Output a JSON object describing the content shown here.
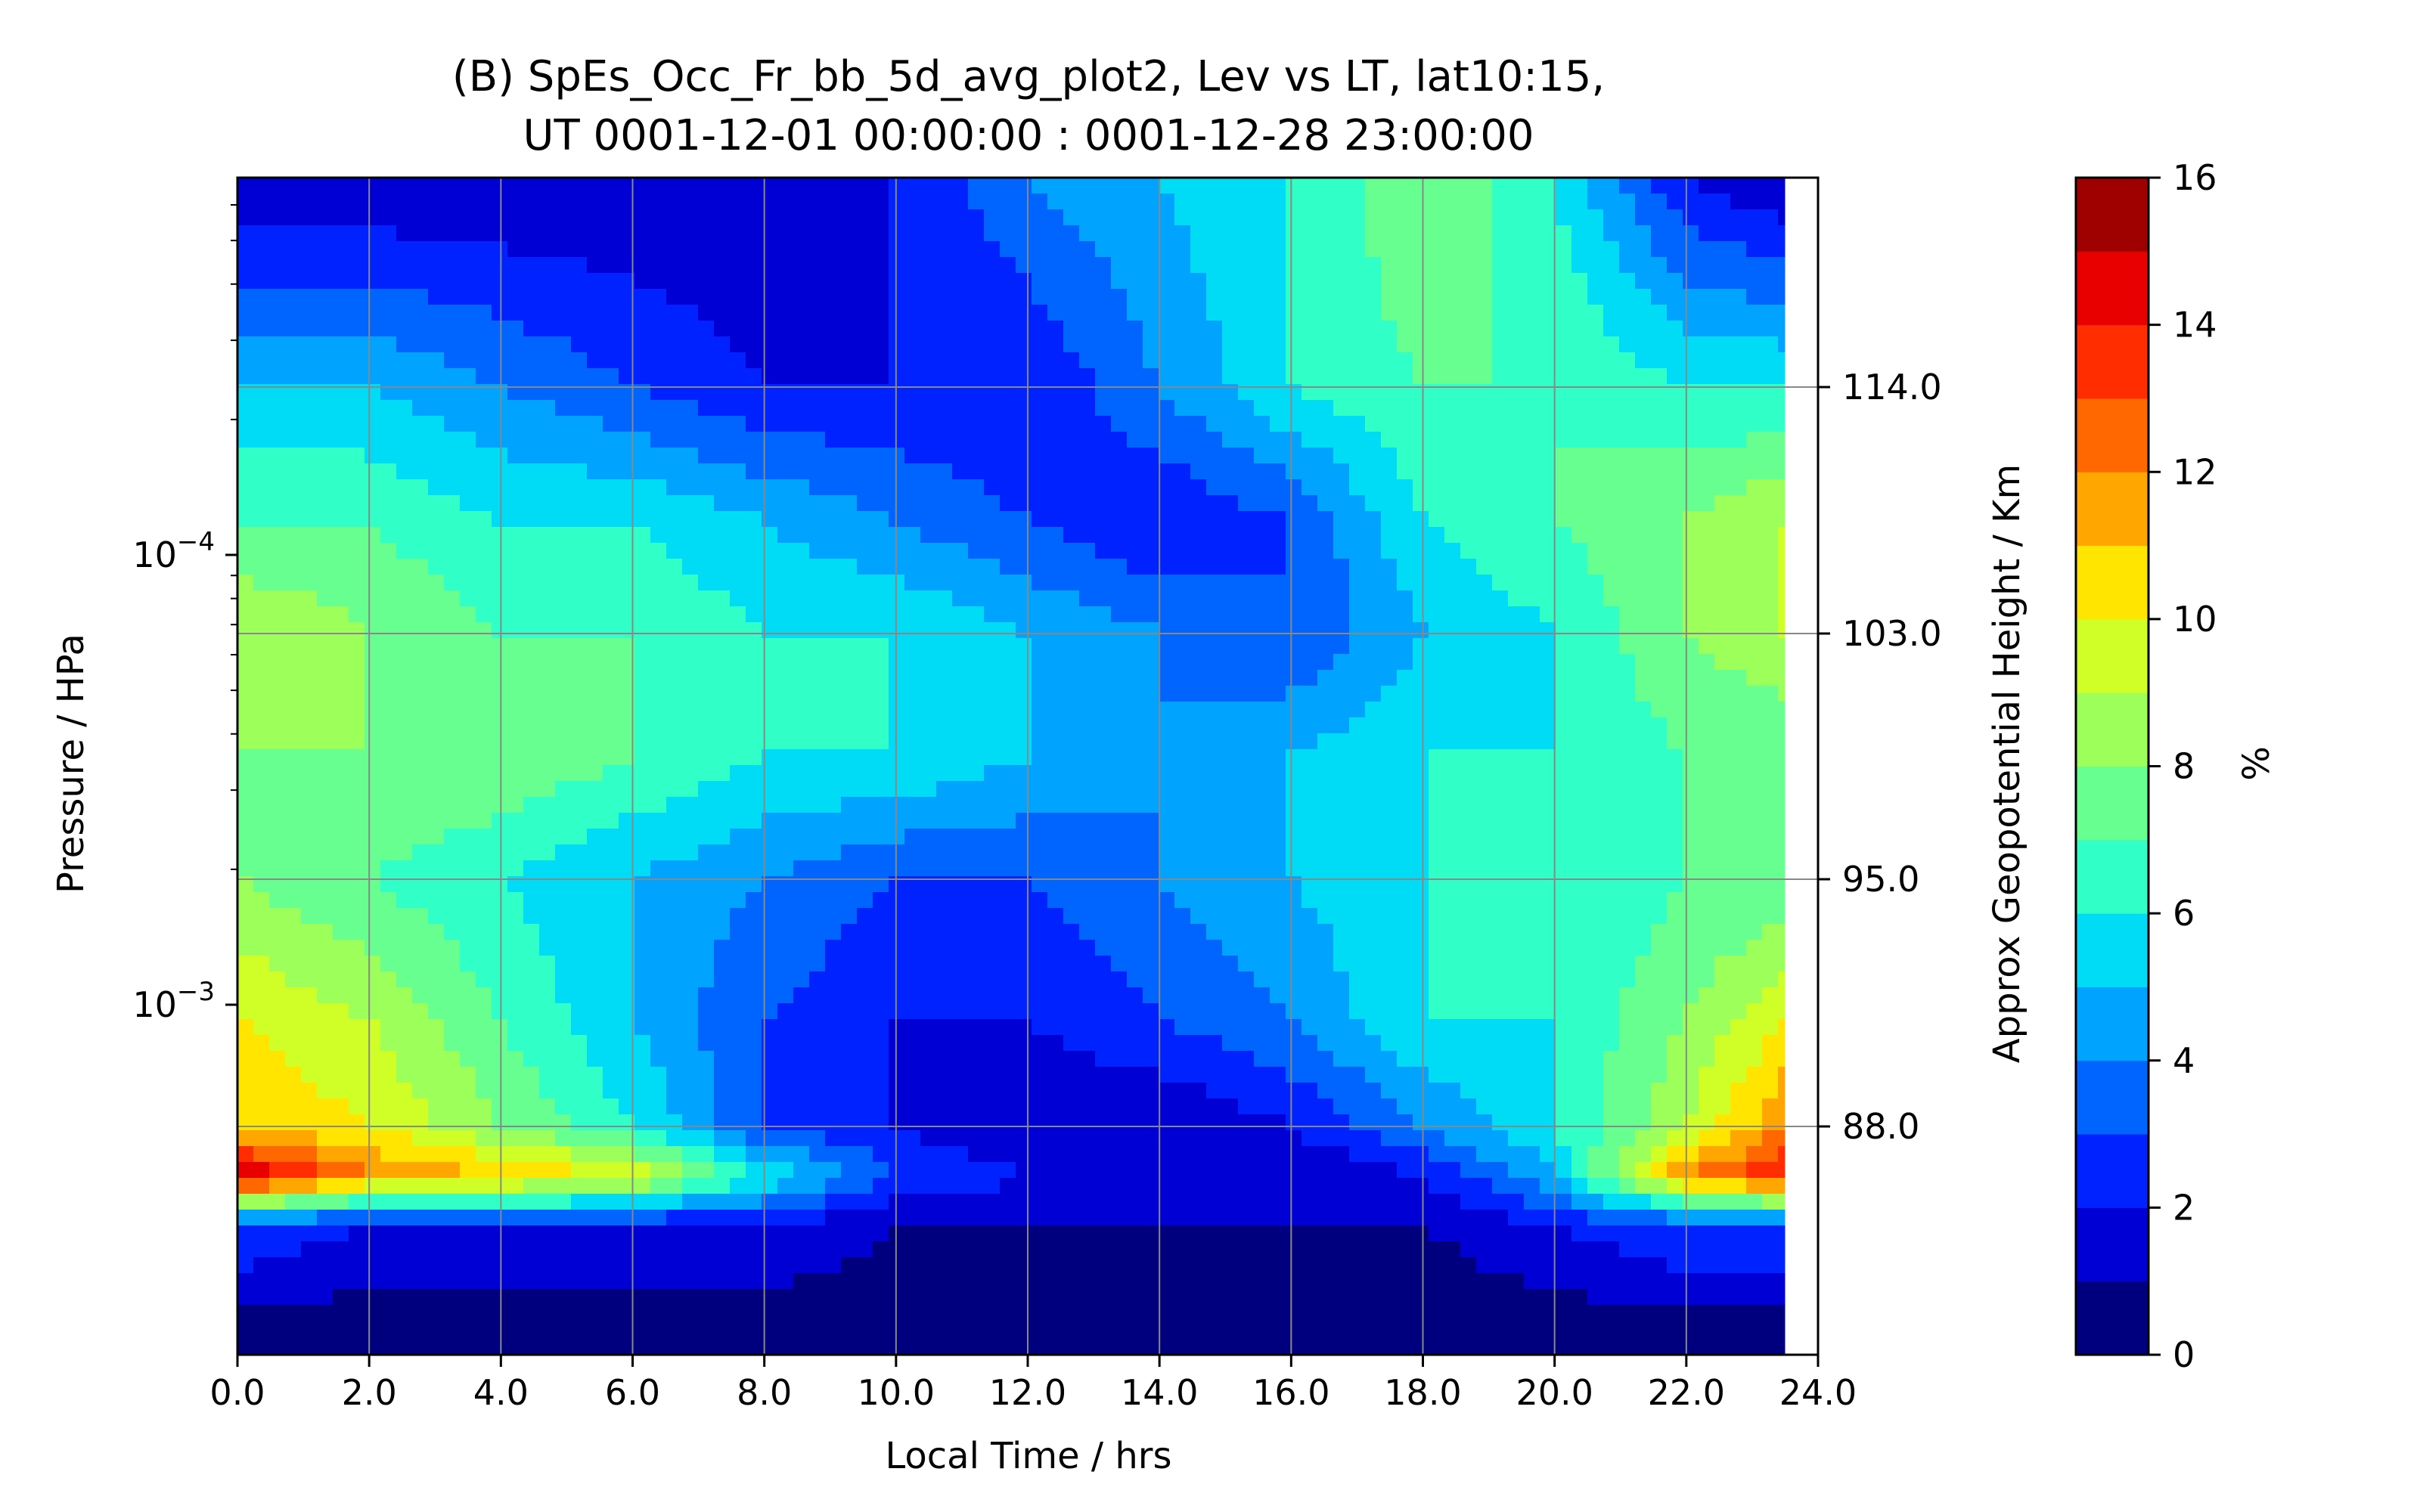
{
  "chart_data": {
    "type": "heatmap",
    "subtype": "filled-contour",
    "title_line1": "(B) SpEs_Occ_Fr_bb_5d_avg_plot2, Lev vs LT, lat10:15,",
    "title_line2": "UT 0001-12-01 00:00:00 : 0001-12-28 23:00:00",
    "xlabel": "Local Time / hrs",
    "ylabel": "Pressure / HPa",
    "ylabel_right": "Approx Geopotential Height / Km",
    "colorbar_label": "%",
    "xlim": [
      0.0,
      24.0
    ],
    "x_ticks": [
      "0.0",
      "2.0",
      "4.0",
      "6.0",
      "8.0",
      "10.0",
      "12.0",
      "14.0",
      "16.0",
      "18.0",
      "20.0",
      "22.0",
      "24.0"
    ],
    "y_scale": "log",
    "y_ticks": [
      {
        "base": "10",
        "exp": "−4",
        "value": 0.0001
      },
      {
        "base": "10",
        "exp": "−3",
        "value": 0.001
      }
    ],
    "right_ticks": [
      "114.0",
      "103.0",
      "95.0",
      "88.0"
    ],
    "colorbar_ticks": [
      "16",
      "14",
      "12",
      "10",
      "8",
      "6",
      "4",
      "2",
      "0"
    ],
    "levels": [
      0,
      1,
      2,
      3,
      4,
      5,
      6,
      7,
      8,
      9,
      10,
      11,
      12,
      13,
      14,
      15,
      16
    ],
    "grid": true,
    "colormap": [
      "#00007f",
      "#0000d4",
      "#0022ff",
      "#0064ff",
      "#00a4ff",
      "#00dcf6",
      "#30ffc7",
      "#66ff90",
      "#9cff5a",
      "#cfff27",
      "#ffe500",
      "#ffa700",
      "#ff6800",
      "#ff2d00",
      "#e80000",
      "#9f0000"
    ],
    "approx_field_samples": {
      "description_x": "local time (hrs)",
      "x": [
        0,
        2,
        4,
        6,
        8,
        10,
        12,
        14,
        16,
        18,
        20,
        22,
        23.5
      ],
      "rows": [
        {
          "height_km": 120,
          "values": [
            1,
            1,
            1,
            1,
            1,
            2,
            4,
            5,
            6,
            8,
            6,
            2,
            1
          ]
        },
        {
          "height_km": 114,
          "values": [
            5,
            5,
            4,
            3,
            2,
            2,
            2,
            4,
            6,
            7,
            7,
            6,
            6
          ]
        },
        {
          "height_km": 108,
          "values": [
            7,
            7,
            6,
            6,
            5,
            4,
            3,
            2,
            3,
            6,
            7,
            8,
            9
          ]
        },
        {
          "height_km": 103,
          "values": [
            9,
            8,
            7,
            7,
            6,
            6,
            5,
            4,
            3,
            5,
            6,
            8,
            9
          ]
        },
        {
          "height_km": 99,
          "values": [
            8,
            8,
            8,
            7,
            6,
            6,
            5,
            4,
            5,
            6,
            6,
            7,
            7
          ]
        },
        {
          "height_km": 95,
          "values": [
            8,
            7,
            6,
            5,
            4,
            3,
            3,
            4,
            5,
            6,
            6,
            7,
            7
          ]
        },
        {
          "height_km": 91,
          "values": [
            10,
            9,
            7,
            5,
            3,
            2,
            2,
            3,
            4,
            6,
            6,
            8,
            10
          ]
        },
        {
          "height_km": 88,
          "values": [
            11,
            10,
            8,
            6,
            3,
            2,
            1,
            1,
            2,
            4,
            6,
            9,
            12
          ]
        },
        {
          "height_km": 86,
          "values": [
            15,
            12,
            11,
            10,
            6,
            3,
            2,
            1,
            1,
            2,
            5,
            12,
            14
          ]
        },
        {
          "height_km": 84,
          "values": [
            3,
            2,
            2,
            2,
            2,
            1,
            1,
            1,
            1,
            1,
            2,
            3,
            3
          ]
        },
        {
          "height_km": 82,
          "values": [
            0,
            0,
            0,
            0,
            0,
            0,
            0,
            0,
            0,
            0,
            0,
            0,
            0
          ]
        }
      ]
    }
  }
}
